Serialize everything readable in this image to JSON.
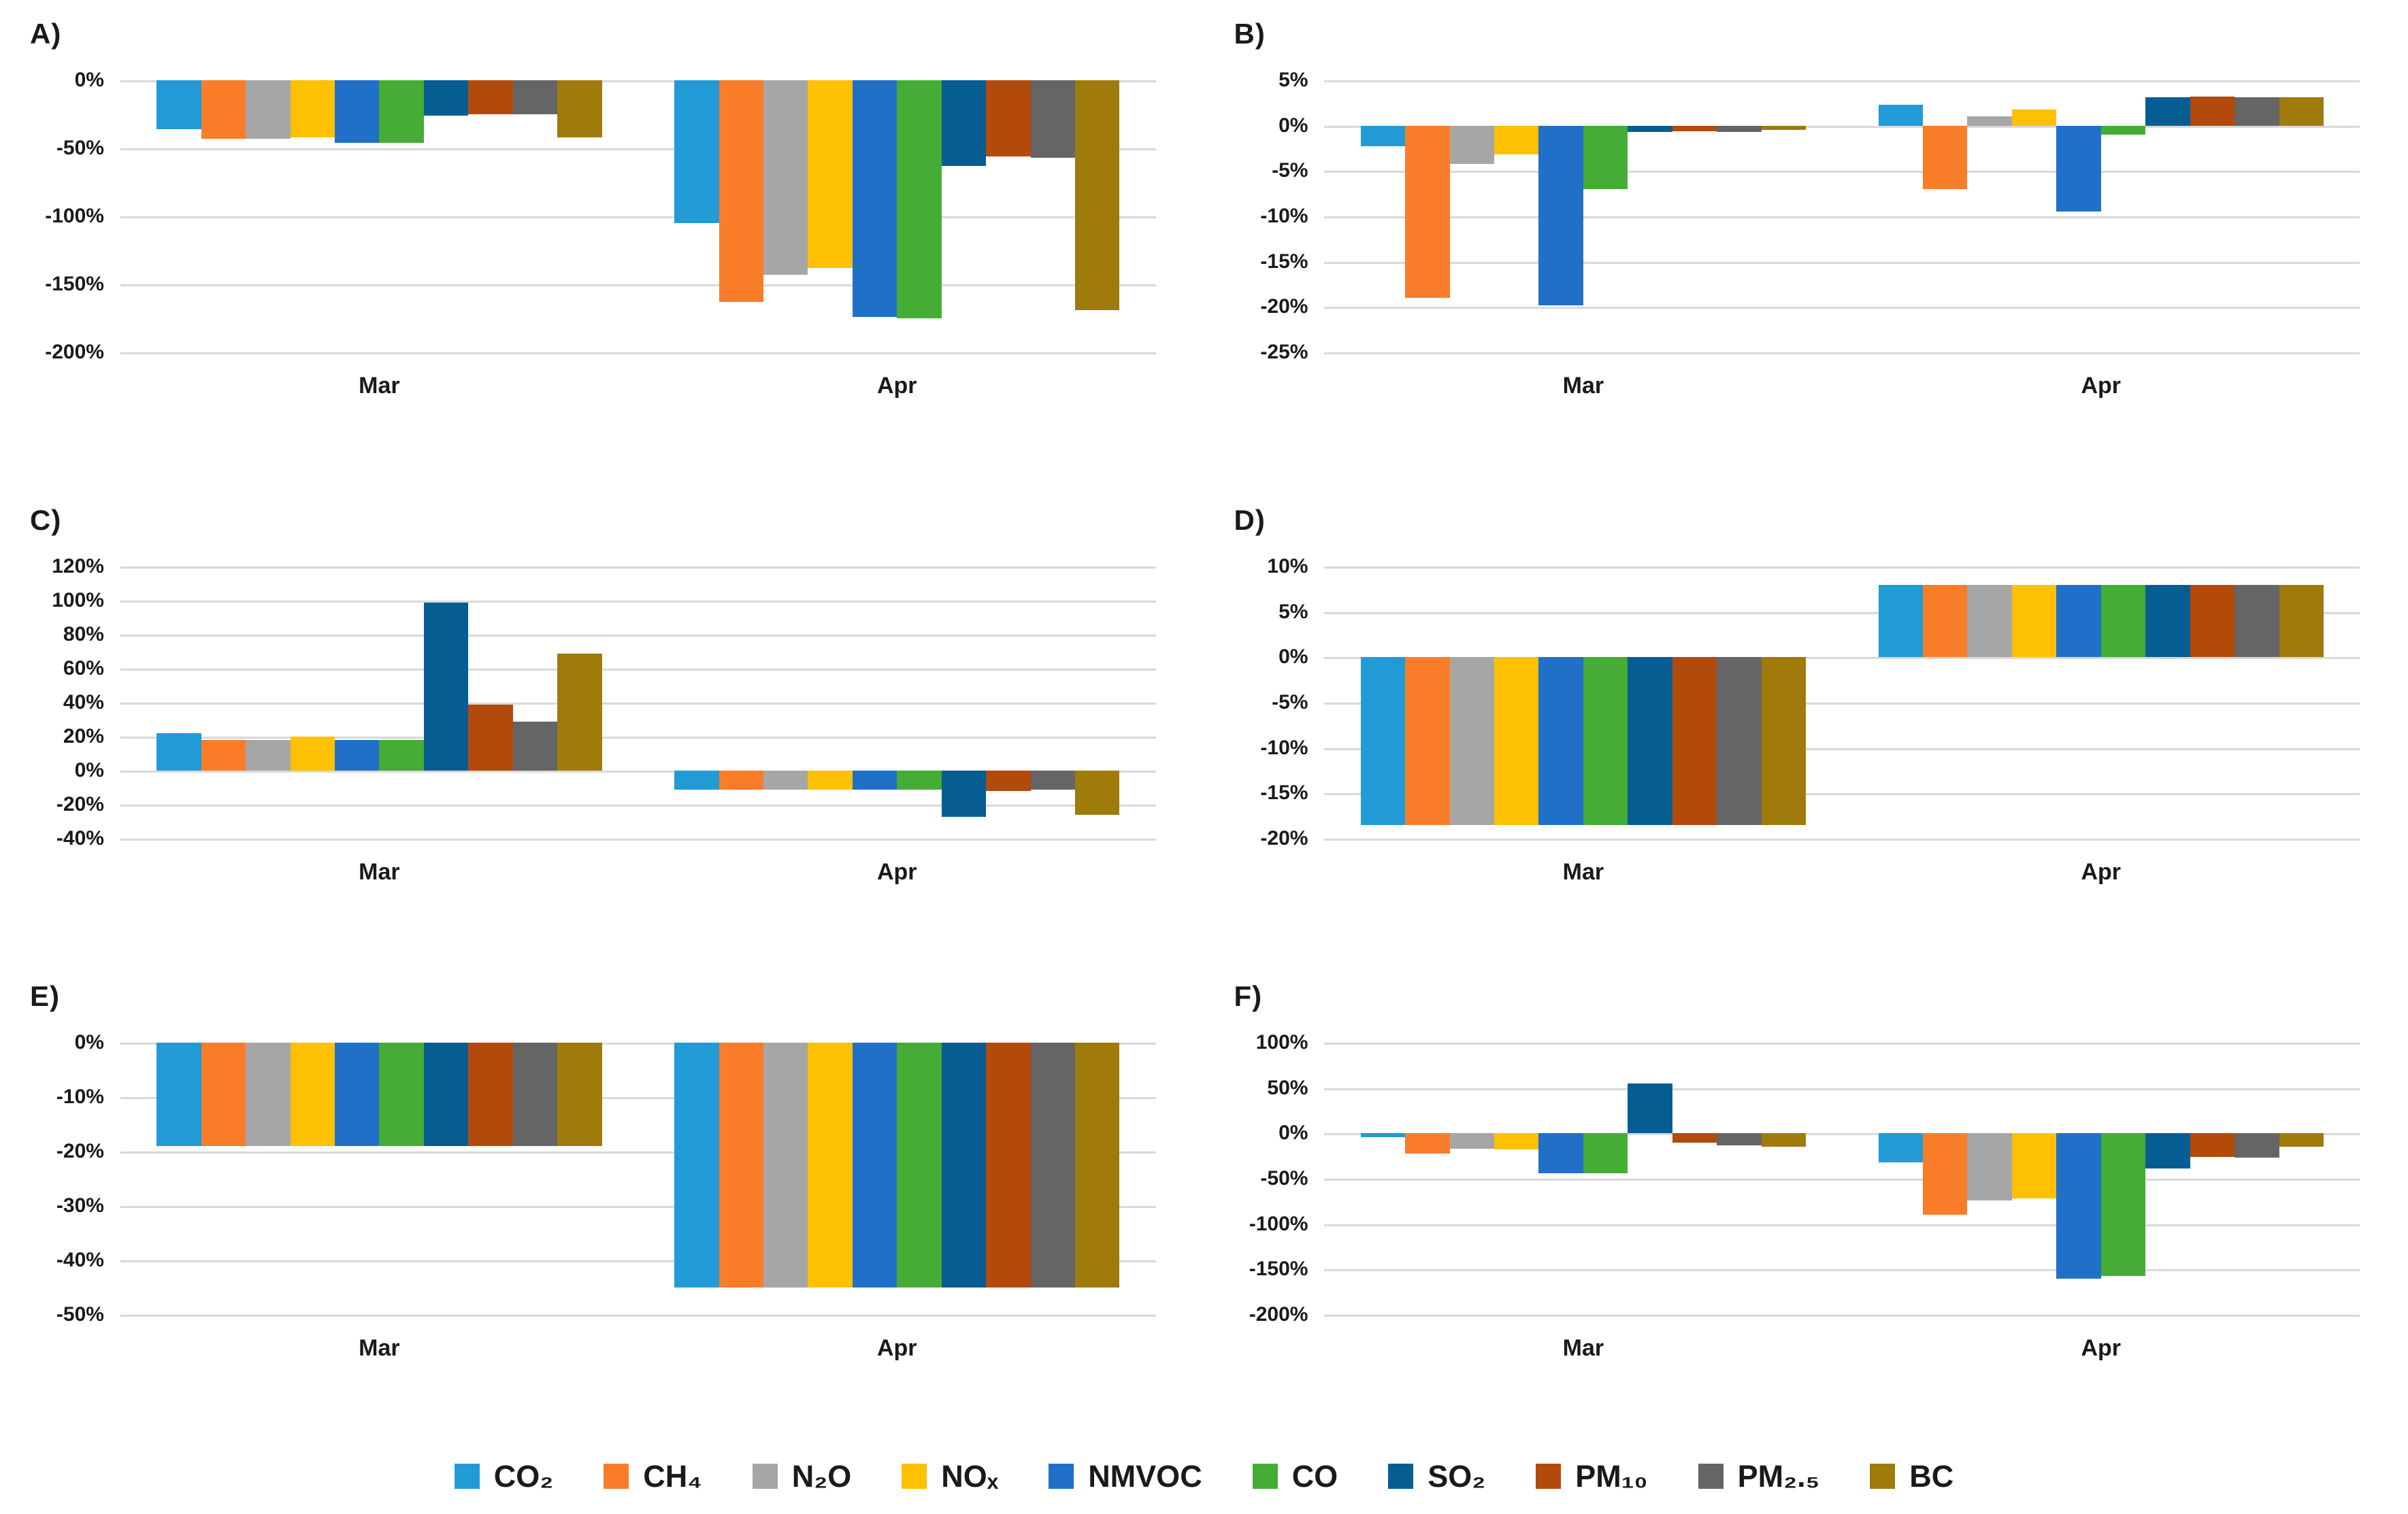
{
  "figure": {
    "months": [
      "Mar",
      "Apr"
    ],
    "series": [
      {
        "name": "co2",
        "label": "CO₂",
        "color": "#229AD6"
      },
      {
        "name": "ch4",
        "label": "CH₄",
        "color": "#F97D29"
      },
      {
        "name": "n2o",
        "label": "N₂O",
        "color": "#A6A6A6"
      },
      {
        "name": "nox",
        "label": "NOₓ",
        "color": "#FEC102"
      },
      {
        "name": "nmvoc",
        "label": "NMVOC",
        "color": "#2070C7"
      },
      {
        "name": "co",
        "label": "CO",
        "color": "#45AC35"
      },
      {
        "name": "so2",
        "label": "SO₂",
        "color": "#065D92"
      },
      {
        "name": "pm10",
        "label": "PM₁₀",
        "color": "#B24A0C"
      },
      {
        "name": "pm25",
        "label": "PM₂.₅",
        "color": "#656565"
      },
      {
        "name": "bc",
        "label": "BC",
        "color": "#9E7B0A"
      }
    ],
    "gridline_color": "#D9D9D9",
    "legend_position": "bottom"
  },
  "chart_data": [
    {
      "panel_label": "A)",
      "type": "bar",
      "categories": [
        "Mar",
        "Apr"
      ],
      "ylim": [
        -200,
        0
      ],
      "yticks": [
        0,
        -50,
        -100,
        -150,
        -200
      ],
      "grid": true,
      "unit": "%",
      "title": "",
      "xlabel": "",
      "ylabel": "",
      "series": [
        {
          "name": "CO₂",
          "values": [
            -36,
            -105
          ]
        },
        {
          "name": "CH₄",
          "values": [
            -43,
            -163
          ]
        },
        {
          "name": "N₂O",
          "values": [
            -43,
            -143
          ]
        },
        {
          "name": "NOₓ",
          "values": [
            -42,
            -138
          ]
        },
        {
          "name": "NMVOC",
          "values": [
            -46,
            -174
          ]
        },
        {
          "name": "CO",
          "values": [
            -46,
            -175
          ]
        },
        {
          "name": "SO₂",
          "values": [
            -26,
            -63
          ]
        },
        {
          "name": "PM₁₀",
          "values": [
            -25,
            -56
          ]
        },
        {
          "name": "PM₂.₅",
          "values": [
            -25,
            -57
          ]
        },
        {
          "name": "BC",
          "values": [
            -42,
            -169
          ]
        }
      ]
    },
    {
      "panel_label": "B)",
      "type": "bar",
      "categories": [
        "Mar",
        "Apr"
      ],
      "ylim": [
        -25,
        5
      ],
      "yticks": [
        5,
        0,
        -5,
        -10,
        -15,
        -20,
        -25
      ],
      "grid": true,
      "unit": "%",
      "title": "",
      "xlabel": "",
      "ylabel": "",
      "series": [
        {
          "name": "CO₂",
          "values": [
            -2.3,
            2.3
          ]
        },
        {
          "name": "CH₄",
          "values": [
            -19,
            -7
          ]
        },
        {
          "name": "N₂O",
          "values": [
            -4.2,
            1
          ]
        },
        {
          "name": "NOₓ",
          "values": [
            -3.2,
            1.8
          ]
        },
        {
          "name": "NMVOC",
          "values": [
            -19.8,
            -9.5
          ]
        },
        {
          "name": "CO",
          "values": [
            -7,
            -1
          ]
        },
        {
          "name": "SO₂",
          "values": [
            -0.7,
            3.1
          ]
        },
        {
          "name": "PM₁₀",
          "values": [
            -0.6,
            3.2
          ]
        },
        {
          "name": "PM₂.₅",
          "values": [
            -0.7,
            3.1
          ]
        },
        {
          "name": "BC",
          "values": [
            -0.5,
            3.1
          ]
        }
      ]
    },
    {
      "panel_label": "C)",
      "type": "bar",
      "categories": [
        "Mar",
        "Apr"
      ],
      "ylim": [
        -40,
        120
      ],
      "yticks": [
        120,
        100,
        80,
        60,
        40,
        20,
        0,
        -20,
        -40
      ],
      "grid": true,
      "unit": "%",
      "title": "",
      "xlabel": "",
      "ylabel": "",
      "series": [
        {
          "name": "CO₂",
          "values": [
            22,
            -11
          ]
        },
        {
          "name": "CH₄",
          "values": [
            18,
            -11
          ]
        },
        {
          "name": "N₂O",
          "values": [
            18,
            -11
          ]
        },
        {
          "name": "NOₓ",
          "values": [
            20,
            -11
          ]
        },
        {
          "name": "NMVOC",
          "values": [
            18,
            -11
          ]
        },
        {
          "name": "CO",
          "values": [
            18,
            -11
          ]
        },
        {
          "name": "SO₂",
          "values": [
            99,
            -27
          ]
        },
        {
          "name": "PM₁₀",
          "values": [
            39,
            -12
          ]
        },
        {
          "name": "PM₂.₅",
          "values": [
            29,
            -11
          ]
        },
        {
          "name": "BC",
          "values": [
            69,
            -26
          ]
        }
      ]
    },
    {
      "panel_label": "D)",
      "type": "bar",
      "categories": [
        "Mar",
        "Apr"
      ],
      "ylim": [
        -20,
        10
      ],
      "yticks": [
        10,
        5,
        0,
        -5,
        -10,
        -15,
        -20
      ],
      "grid": true,
      "unit": "%",
      "title": "",
      "xlabel": "",
      "ylabel": "",
      "series": [
        {
          "name": "CO₂",
          "values": [
            -18.5,
            8
          ]
        },
        {
          "name": "CH₄",
          "values": [
            -18.5,
            8
          ]
        },
        {
          "name": "N₂O",
          "values": [
            -18.5,
            8
          ]
        },
        {
          "name": "NOₓ",
          "values": [
            -18.5,
            8
          ]
        },
        {
          "name": "NMVOC",
          "values": [
            -18.5,
            8
          ]
        },
        {
          "name": "CO",
          "values": [
            -18.5,
            8
          ]
        },
        {
          "name": "SO₂",
          "values": [
            -18.5,
            8
          ]
        },
        {
          "name": "PM₁₀",
          "values": [
            -18.5,
            8
          ]
        },
        {
          "name": "PM₂.₅",
          "values": [
            -18.5,
            8
          ]
        },
        {
          "name": "BC",
          "values": [
            -18.5,
            8
          ]
        }
      ]
    },
    {
      "panel_label": "E)",
      "type": "bar",
      "categories": [
        "Mar",
        "Apr"
      ],
      "ylim": [
        -50,
        0
      ],
      "yticks": [
        0,
        -10,
        -20,
        -30,
        -40,
        -50
      ],
      "grid": true,
      "unit": "%",
      "title": "",
      "xlabel": "",
      "ylabel": "",
      "series": [
        {
          "name": "CO₂",
          "values": [
            -19,
            -45
          ]
        },
        {
          "name": "CH₄",
          "values": [
            -19,
            -45
          ]
        },
        {
          "name": "N₂O",
          "values": [
            -19,
            -45
          ]
        },
        {
          "name": "NOₓ",
          "values": [
            -19,
            -45
          ]
        },
        {
          "name": "NMVOC",
          "values": [
            -19,
            -45
          ]
        },
        {
          "name": "CO",
          "values": [
            -19,
            -45
          ]
        },
        {
          "name": "SO₂",
          "values": [
            -19,
            -45
          ]
        },
        {
          "name": "PM₁₀",
          "values": [
            -19,
            -45
          ]
        },
        {
          "name": "PM₂.₅",
          "values": [
            -19,
            -45
          ]
        },
        {
          "name": "BC",
          "values": [
            -19,
            -45
          ]
        }
      ]
    },
    {
      "panel_label": "F)",
      "type": "bar",
      "categories": [
        "Mar",
        "Apr"
      ],
      "ylim": [
        -200,
        100
      ],
      "yticks": [
        100,
        50,
        0,
        -50,
        -100,
        -150,
        -200
      ],
      "grid": true,
      "unit": "%",
      "title": "",
      "xlabel": "",
      "ylabel": "",
      "series": [
        {
          "name": "CO₂",
          "values": [
            -4,
            -32
          ]
        },
        {
          "name": "CH₄",
          "values": [
            -22,
            -90
          ]
        },
        {
          "name": "N₂O",
          "values": [
            -17,
            -74
          ]
        },
        {
          "name": "NOₓ",
          "values": [
            -18,
            -72
          ]
        },
        {
          "name": "NMVOC",
          "values": [
            -44,
            -160
          ]
        },
        {
          "name": "CO",
          "values": [
            -44,
            -157
          ]
        },
        {
          "name": "SO₂",
          "values": [
            55,
            -39
          ]
        },
        {
          "name": "PM₁₀",
          "values": [
            -10,
            -26
          ]
        },
        {
          "name": "PM₂.₅",
          "values": [
            -13,
            -27
          ]
        },
        {
          "name": "BC",
          "values": [
            -15,
            -15
          ]
        }
      ]
    }
  ]
}
